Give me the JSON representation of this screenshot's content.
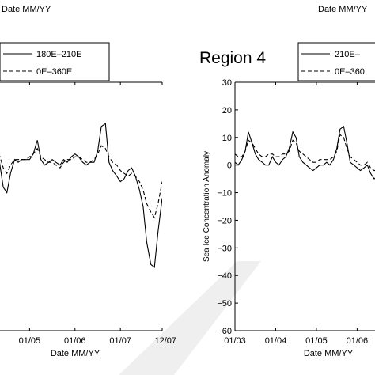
{
  "colors": {
    "line": "#000000",
    "axis": "#000000",
    "watermark": "#efefef"
  },
  "chart_data": [
    {
      "type": "line",
      "title": "",
      "xlabel": "Date MM/YY",
      "top_xlabel": "Date MM/YY",
      "ylabel": "",
      "ylim": [
        -60,
        30
      ],
      "x_ticks": [
        {
          "label": "01/05",
          "x": 2005.0
        },
        {
          "label": "01/06",
          "x": 2006.0
        },
        {
          "label": "01/07",
          "x": 2007.0
        },
        {
          "label": "12/07",
          "x": 2007.92
        }
      ],
      "xlim": [
        2004.0,
        2007.92
      ],
      "legend": [
        "180E–210E",
        "0E–360E"
      ],
      "legend_position": "top-right",
      "series": [
        {
          "name": "180E–210E",
          "style": "solid",
          "x": [
            2004.0,
            2004.08,
            2004.17,
            2004.25,
            2004.33,
            2004.42,
            2004.5,
            2004.58,
            2004.67,
            2004.75,
            2004.83,
            2004.92,
            2005.0,
            2005.08,
            2005.17,
            2005.25,
            2005.33,
            2005.42,
            2005.5,
            2005.58,
            2005.67,
            2005.75,
            2005.83,
            2005.92,
            2006.0,
            2006.08,
            2006.17,
            2006.25,
            2006.33,
            2006.42,
            2006.5,
            2006.58,
            2006.67,
            2006.75,
            2006.83,
            2006.92,
            2007.0,
            2007.08,
            2007.17,
            2007.25,
            2007.33,
            2007.42,
            2007.5,
            2007.58,
            2007.67,
            2007.75,
            2007.83,
            2007.92
          ],
          "values": [
            3,
            7,
            9,
            10,
            2,
            -8,
            -10,
            -3,
            2,
            1,
            2,
            2,
            2,
            4,
            9,
            2,
            0,
            1,
            2,
            1,
            0,
            2,
            1,
            3,
            4,
            3,
            1,
            0,
            1,
            1,
            5,
            14,
            15,
            1,
            -2,
            -4,
            -6,
            -5,
            -2,
            -1,
            -4,
            -9,
            -15,
            -28,
            -36,
            -37,
            -24,
            -12
          ]
        },
        {
          "name": "0E–360E",
          "style": "dashed",
          "x": [
            2004.0,
            2004.08,
            2004.17,
            2004.25,
            2004.33,
            2004.42,
            2004.5,
            2004.58,
            2004.67,
            2004.75,
            2004.83,
            2004.92,
            2005.0,
            2005.08,
            2005.17,
            2005.25,
            2005.33,
            2005.42,
            2005.5,
            2005.58,
            2005.67,
            2005.75,
            2005.83,
            2005.92,
            2006.0,
            2006.08,
            2006.17,
            2006.25,
            2006.33,
            2006.42,
            2006.5,
            2006.58,
            2006.67,
            2006.75,
            2006.83,
            2006.92,
            2007.0,
            2007.08,
            2007.17,
            2007.25,
            2007.33,
            2007.42,
            2007.5,
            2007.58,
            2007.67,
            2007.75,
            2007.83,
            2007.92
          ],
          "values": [
            4,
            6,
            8,
            9,
            4,
            -1,
            -3,
            0,
            2,
            2,
            2,
            2,
            3,
            4,
            6,
            3,
            2,
            1,
            1,
            0,
            -1,
            1,
            2,
            2,
            3,
            3,
            2,
            1,
            1,
            2,
            4,
            7,
            6,
            3,
            1,
            0,
            -2,
            -3,
            -4,
            -3,
            -4,
            -6,
            -9,
            -14,
            -17,
            -19,
            -14,
            -6
          ]
        }
      ]
    },
    {
      "type": "line",
      "title": "Region 4",
      "xlabel": "Date MM/YY",
      "top_xlabel": "Date MM/YY",
      "ylabel": "Sea Ice Concentration Anomaly",
      "ylim": [
        -60,
        30
      ],
      "y_ticks": [
        30,
        20,
        10,
        0,
        -10,
        -20,
        -30,
        -40,
        -50,
        -60
      ],
      "x_ticks": [
        {
          "label": "01/03",
          "x": 2003.0
        },
        {
          "label": "01/04",
          "x": 2004.0
        },
        {
          "label": "01/05",
          "x": 2005.0
        },
        {
          "label": "01/06",
          "x": 2006.0
        }
      ],
      "xlim": [
        2003.0,
        2006.75
      ],
      "legend": [
        "210E–",
        "0E–360"
      ],
      "legend_position": "top-right",
      "series": [
        {
          "name": "210E–",
          "style": "solid",
          "x": [
            2003.0,
            2003.08,
            2003.17,
            2003.25,
            2003.33,
            2003.42,
            2003.5,
            2003.58,
            2003.67,
            2003.75,
            2003.83,
            2003.92,
            2004.0,
            2004.08,
            2004.17,
            2004.25,
            2004.33,
            2004.42,
            2004.5,
            2004.58,
            2004.67,
            2004.75,
            2004.83,
            2004.92,
            2005.0,
            2005.08,
            2005.17,
            2005.25,
            2005.33,
            2005.42,
            2005.5,
            2005.58,
            2005.67,
            2005.75,
            2005.83,
            2005.92,
            2006.0,
            2006.08,
            2006.17,
            2006.25,
            2006.33,
            2006.42,
            2006.5,
            2006.58,
            2006.67,
            2006.75
          ],
          "values": [
            1,
            0,
            2,
            5,
            12,
            8,
            4,
            2,
            1,
            0,
            0,
            3,
            1,
            0,
            2,
            3,
            6,
            12,
            10,
            3,
            1,
            0,
            -1,
            -2,
            -1,
            0,
            0,
            1,
            0,
            2,
            6,
            13,
            14,
            8,
            1,
            0,
            -1,
            -2,
            -1,
            0,
            -3,
            -5,
            -4,
            -3,
            -2,
            -1
          ]
        },
        {
          "name": "0E–360",
          "style": "dashed",
          "x": [
            2003.0,
            2003.08,
            2003.17,
            2003.25,
            2003.33,
            2003.42,
            2003.5,
            2003.58,
            2003.67,
            2003.75,
            2003.83,
            2003.92,
            2004.0,
            2004.08,
            2004.17,
            2004.25,
            2004.33,
            2004.42,
            2004.5,
            2004.58,
            2004.67,
            2004.75,
            2004.83,
            2004.92,
            2005.0,
            2005.08,
            2005.17,
            2005.25,
            2005.33,
            2005.42,
            2005.5,
            2005.58,
            2005.67,
            2005.75,
            2005.83,
            2005.92,
            2006.0,
            2006.08,
            2006.17,
            2006.25,
            2006.33,
            2006.42,
            2006.5,
            2006.58,
            2006.67,
            2006.75
          ],
          "values": [
            4,
            3,
            3,
            5,
            9,
            8,
            6,
            4,
            3,
            3,
            4,
            4,
            3,
            3,
            4,
            4,
            5,
            9,
            8,
            5,
            4,
            3,
            2,
            1,
            1,
            2,
            2,
            2,
            2,
            3,
            5,
            11,
            10,
            6,
            3,
            2,
            1,
            0,
            0,
            1,
            -1,
            -2,
            -2,
            -1,
            0,
            1
          ]
        }
      ]
    }
  ]
}
